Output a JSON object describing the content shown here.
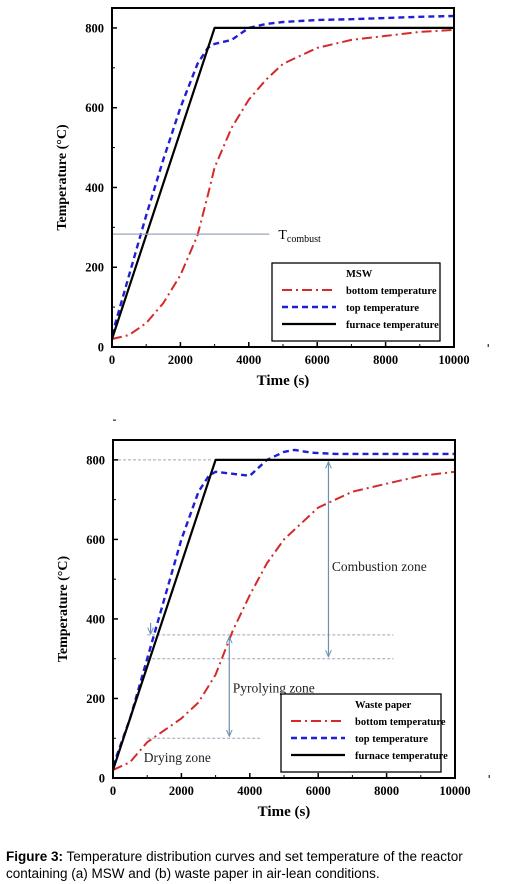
{
  "caption": {
    "label": "Figure 3:",
    "text": "Temperature distribution curves and set temperature of the reactor containing (a) MSW and  (b) waste paper in air-lean conditions."
  },
  "colors": {
    "bottom": "#d42a2a",
    "top": "#1f1fd6",
    "furnace": "#000000",
    "guide": "#9aa6b8",
    "annot": "#6f8fb0"
  },
  "chart_data": [
    {
      "type": "line",
      "title": "",
      "xlabel": "Time (s)",
      "ylabel": "Temperature (°C)",
      "xlim": [
        0,
        10000
      ],
      "ylim": [
        0,
        850
      ],
      "xticks": [
        "0",
        "2000",
        "4000",
        "6000",
        "8000",
        "10000"
      ],
      "yticks": [
        "0",
        "200",
        "400",
        "600",
        "800"
      ],
      "legend": {
        "title": "MSW",
        "position": "bottom-right"
      },
      "annotations": [
        {
          "text": "T",
          "sub": "combust",
          "y": 283,
          "x_from": 0,
          "x_to": 4600
        }
      ],
      "series": [
        {
          "name": "bottom temperature",
          "style": "dash-dot",
          "x": [
            0,
            500,
            1000,
            1500,
            2000,
            2500,
            2800,
            3000,
            3500,
            4000,
            4500,
            5000,
            6000,
            7000,
            8000,
            9000,
            10000
          ],
          "y": [
            20,
            30,
            60,
            110,
            180,
            280,
            380,
            450,
            550,
            620,
            670,
            710,
            750,
            770,
            780,
            790,
            795
          ]
        },
        {
          "name": "top temperature",
          "style": "dashed",
          "x": [
            0,
            500,
            1000,
            1500,
            2000,
            2500,
            2800,
            3000,
            3500,
            4000,
            4500,
            5000,
            6000,
            7000,
            8000,
            9000,
            10000
          ],
          "y": [
            30,
            180,
            330,
            470,
            600,
            710,
            750,
            760,
            770,
            800,
            810,
            815,
            820,
            822,
            825,
            828,
            830
          ]
        },
        {
          "name": "furnace temperature",
          "style": "solid",
          "x": [
            0,
            3000,
            10000
          ],
          "y": [
            20,
            800,
            800
          ]
        }
      ]
    },
    {
      "type": "line",
      "title": "",
      "xlabel": "Time (s)",
      "ylabel": "Temperature (°C)",
      "xlim": [
        0,
        10000
      ],
      "ylim": [
        0,
        850
      ],
      "xticks": [
        "0",
        "2000",
        "4000",
        "6000",
        "8000",
        "10000"
      ],
      "yticks": [
        "0",
        "200",
        "400",
        "600",
        "800"
      ],
      "legend": {
        "title": "Waste paper",
        "position": "bottom-right"
      },
      "annotations": [
        {
          "text": "Combustion zone"
        },
        {
          "text": "Pyrolying zone"
        },
        {
          "text": "Drying zone"
        }
      ],
      "series": [
        {
          "name": "bottom temperature",
          "style": "dash-dot",
          "x": [
            0,
            500,
            1000,
            1500,
            2000,
            2500,
            3000,
            3500,
            4000,
            4500,
            5000,
            6000,
            7000,
            8000,
            9000,
            10000
          ],
          "y": [
            20,
            40,
            90,
            120,
            150,
            190,
            260,
            370,
            460,
            540,
            600,
            680,
            720,
            740,
            760,
            770
          ]
        },
        {
          "name": "top temperature",
          "style": "dashed",
          "x": [
            0,
            500,
            1000,
            1500,
            2000,
            2500,
            2800,
            3000,
            3500,
            4000,
            4500,
            5000,
            5300,
            5800,
            6500,
            8000,
            10000
          ],
          "y": [
            30,
            150,
            300,
            450,
            600,
            720,
            760,
            770,
            765,
            760,
            800,
            820,
            825,
            818,
            815,
            815,
            815
          ]
        },
        {
          "name": "furnace temperature",
          "style": "solid",
          "x": [
            0,
            3000,
            10000
          ],
          "y": [
            20,
            800,
            800
          ]
        }
      ]
    }
  ]
}
